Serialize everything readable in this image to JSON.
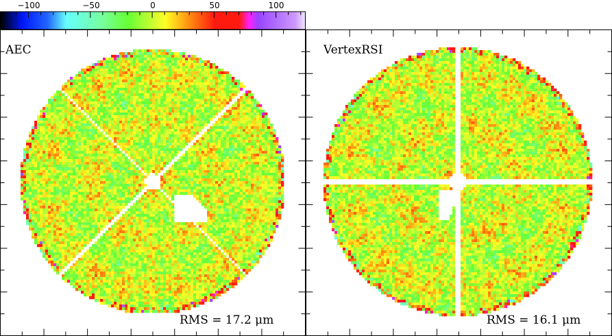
{
  "chart_data": {
    "type": "heatmap",
    "colorbar": {
      "range": [
        -123,
        124
      ],
      "tick_labels": [
        "−100",
        "−50",
        "0",
        "50",
        "100"
      ],
      "tick_values": [
        -100,
        -50,
        0,
        50,
        100
      ],
      "stops": [
        {
          "v": -123,
          "c": "#000000"
        },
        {
          "v": -105,
          "c": "#0018ff"
        },
        {
          "v": -85,
          "c": "#2266ff"
        },
        {
          "v": -70,
          "c": "#66ffff"
        },
        {
          "v": -40,
          "c": "#77ff99"
        },
        {
          "v": -20,
          "c": "#66ff33"
        },
        {
          "v": 0,
          "c": "#ccff33"
        },
        {
          "v": 10,
          "c": "#ffff22"
        },
        {
          "v": 30,
          "c": "#ff8a10"
        },
        {
          "v": 50,
          "c": "#ff1a10"
        },
        {
          "v": 70,
          "c": "#ff1a10"
        },
        {
          "v": 78,
          "c": "#ff22ff"
        },
        {
          "v": 85,
          "c": "#9944ff"
        },
        {
          "v": 115,
          "c": "#cc99ff"
        },
        {
          "v": 124,
          "c": "#f4eeff"
        }
      ]
    },
    "panels": [
      {
        "title": "AEC",
        "rms_label": "RMS = 17.2 μm",
        "rms_value": 17.2,
        "unit": "μm",
        "spokes": "diagonal"
      },
      {
        "title": "VertexRSI",
        "rms_label": "RMS = 16.1 μm",
        "rms_value": 16.1,
        "unit": "μm",
        "spokes": "cross"
      }
    ]
  }
}
